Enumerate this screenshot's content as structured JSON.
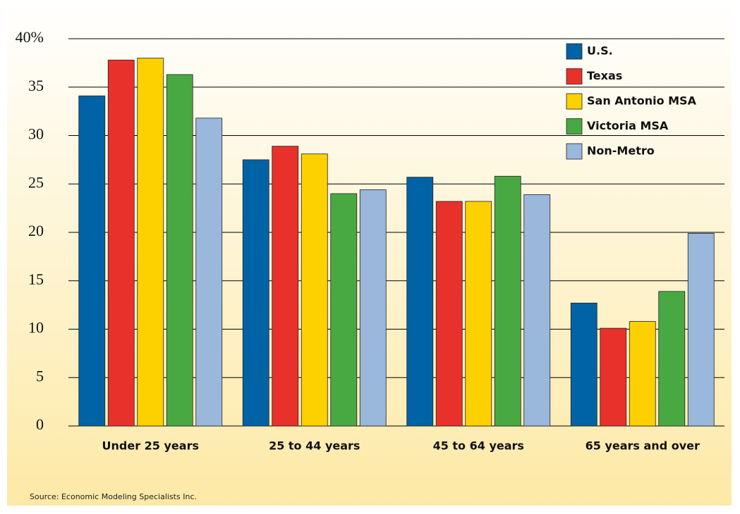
{
  "chart_data": {
    "type": "bar",
    "categories": [
      "Under 25 years",
      "25 to 44 years",
      "45 to 64 years",
      "65 years and over"
    ],
    "series": [
      {
        "name": "U.S.",
        "color": "#0063a6",
        "values": [
          34.1,
          27.5,
          25.7,
          12.7
        ]
      },
      {
        "name": "Texas",
        "color": "#e8312a",
        "values": [
          37.8,
          28.9,
          23.2,
          10.1
        ]
      },
      {
        "name": "San Antonio MSA",
        "color": "#fdd000",
        "values": [
          38.0,
          28.1,
          23.2,
          10.8
        ]
      },
      {
        "name": "Victoria MSA",
        "color": "#48a942",
        "values": [
          36.3,
          24.0,
          25.8,
          13.9
        ]
      },
      {
        "name": "Non-Metro",
        "color": "#9ab7dc",
        "values": [
          31.8,
          24.4,
          23.9,
          19.9
        ]
      }
    ],
    "ylim": [
      0,
      40
    ],
    "yticks": [
      0,
      5,
      10,
      15,
      20,
      25,
      30,
      35,
      {
        "value": 40,
        "label": "40%"
      }
    ],
    "grid": true,
    "legend": "top-right",
    "source": "Source: Economic Modeling Specialists Inc."
  }
}
